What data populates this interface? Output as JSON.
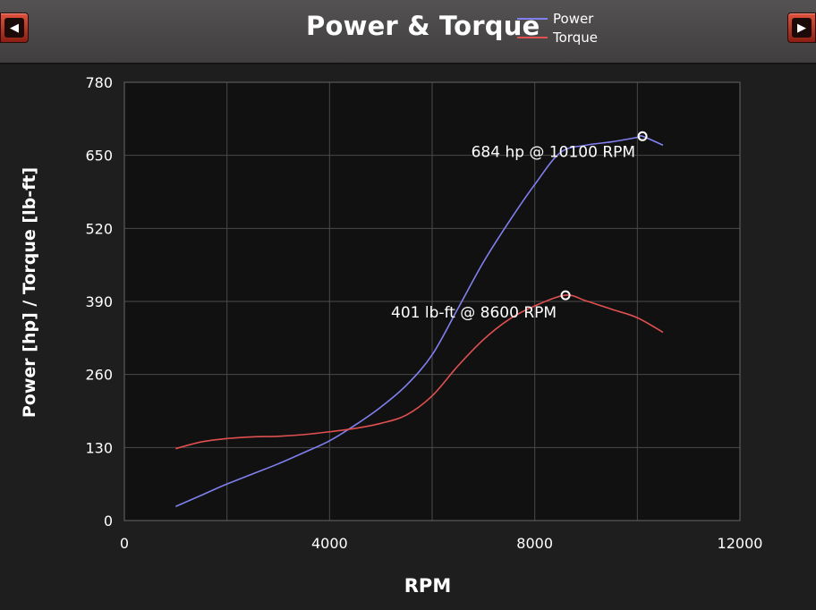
{
  "header": {
    "prev_button": "◀",
    "next_button": "▶"
  },
  "colors": {
    "power": "#8080f0",
    "torque": "#e05050",
    "plot_bg": "#111111",
    "grid": "#4a4a4a"
  },
  "chart_data": {
    "type": "line",
    "title": "Power & Torque",
    "xlabel": "RPM",
    "ylabel": "Power [hp] / Torque [lb-ft]",
    "xlim": [
      0,
      12000
    ],
    "ylim": [
      0,
      780
    ],
    "xticks": [
      0,
      4000,
      8000,
      12000
    ],
    "yticks": [
      0,
      130,
      260,
      390,
      520,
      650,
      780
    ],
    "grid": true,
    "legend_position": "top",
    "series": [
      {
        "name": "Power",
        "x": [
          1000,
          1500,
          2000,
          2500,
          3000,
          3500,
          4000,
          4500,
          5000,
          5500,
          6000,
          6500,
          7000,
          7500,
          8000,
          8500,
          9000,
          9500,
          10000,
          10100,
          10500
        ],
        "y": [
          25,
          45,
          65,
          83,
          101,
          121,
          142,
          170,
          202,
          241,
          295,
          377,
          460,
          532,
          598,
          655,
          668,
          674,
          682,
          684,
          668
        ]
      },
      {
        "name": "Torque",
        "x": [
          1000,
          1500,
          2000,
          2500,
          3000,
          3500,
          4000,
          4500,
          5000,
          5500,
          6000,
          6500,
          7000,
          7500,
          8000,
          8600,
          9000,
          9500,
          10000,
          10500
        ],
        "y": [
          128,
          140,
          146,
          149,
          150,
          153,
          158,
          164,
          173,
          188,
          222,
          275,
          322,
          358,
          382,
          401,
          391,
          376,
          361,
          335
        ]
      }
    ],
    "annotations": [
      {
        "series": "Power",
        "x": 10100,
        "y": 684,
        "text": "684 hp @ 10100 RPM"
      },
      {
        "series": "Torque",
        "x": 8600,
        "y": 401,
        "text": "401 lb-ft @ 8600 RPM"
      }
    ]
  }
}
